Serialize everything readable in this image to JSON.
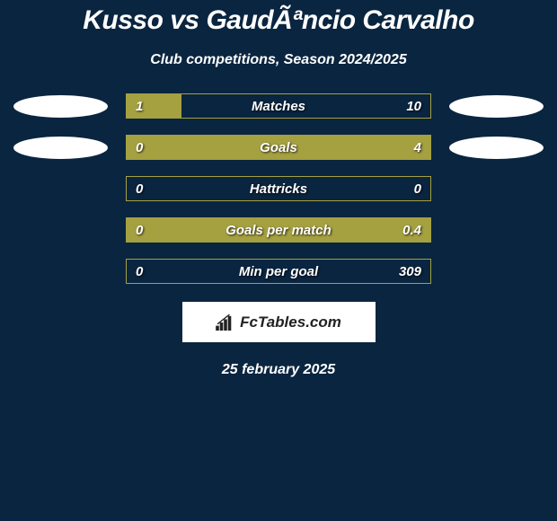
{
  "title": "Kusso vs GaudÃªncio Carvalho",
  "subtitle": "Club competitions, Season 2024/2025",
  "date": "25 february 2025",
  "logo_text": "FcTables.com",
  "background_color": "#0a2540",
  "bar_fill_color": "#a5a040",
  "bar_border_color": "#a5a040",
  "text_color": "#ffffff",
  "ellipse_color": "#ffffff",
  "stats": [
    {
      "label": "Matches",
      "left_value": "1",
      "right_value": "10",
      "left_fill_pct": 18,
      "right_fill_pct": 0,
      "show_left_ellipse": true,
      "show_right_ellipse": true
    },
    {
      "label": "Goals",
      "left_value": "0",
      "right_value": "4",
      "left_fill_pct": 0,
      "right_fill_pct": 100,
      "show_left_ellipse": true,
      "show_right_ellipse": true
    },
    {
      "label": "Hattricks",
      "left_value": "0",
      "right_value": "0",
      "left_fill_pct": 0,
      "right_fill_pct": 0,
      "show_left_ellipse": false,
      "show_right_ellipse": false
    },
    {
      "label": "Goals per match",
      "left_value": "0",
      "right_value": "0.4",
      "left_fill_pct": 0,
      "right_fill_pct": 100,
      "show_left_ellipse": false,
      "show_right_ellipse": false
    },
    {
      "label": "Min per goal",
      "left_value": "0",
      "right_value": "309",
      "left_fill_pct": 0,
      "right_fill_pct": 0,
      "show_left_ellipse": false,
      "show_right_ellipse": false
    }
  ]
}
